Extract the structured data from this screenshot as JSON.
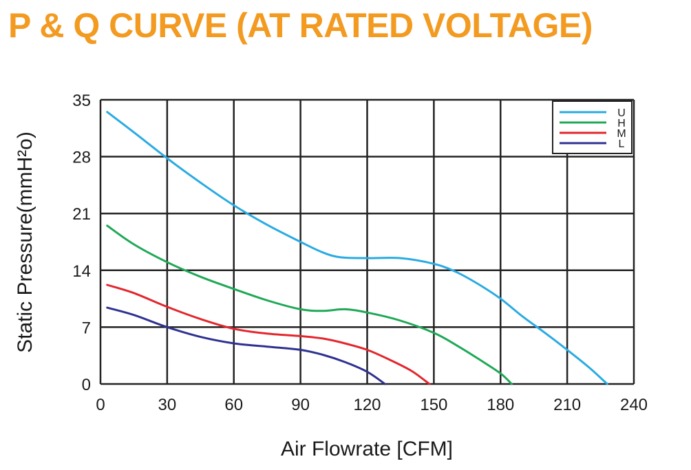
{
  "chart_data": {
    "type": "line",
    "title": "P & Q CURVE (AT RATED VOLTAGE)",
    "xlabel": "Air  Flowrate   [CFM]",
    "ylabel": "Static Pressure(mmH²o)",
    "xlim": [
      0,
      240
    ],
    "ylim": [
      0,
      35
    ],
    "x_ticks": [
      0,
      30,
      60,
      90,
      120,
      150,
      180,
      210,
      240
    ],
    "y_ticks": [
      0,
      7,
      14,
      21,
      28,
      35
    ],
    "grid": true,
    "legend_position": "top-right",
    "series": [
      {
        "name": "U",
        "color": "#29abe2",
        "points": [
          [
            3,
            33.5
          ],
          [
            15,
            31
          ],
          [
            30,
            27.8
          ],
          [
            45,
            24.8
          ],
          [
            60,
            22
          ],
          [
            75,
            19.6
          ],
          [
            90,
            17.5
          ],
          [
            100,
            16.2
          ],
          [
            108,
            15.6
          ],
          [
            120,
            15.5
          ],
          [
            135,
            15.5
          ],
          [
            150,
            14.8
          ],
          [
            160,
            13.8
          ],
          [
            170,
            12.3
          ],
          [
            180,
            10.5
          ],
          [
            190,
            8.3
          ],
          [
            200,
            6.3
          ],
          [
            210,
            4.2
          ],
          [
            220,
            2
          ],
          [
            228,
            0
          ]
        ]
      },
      {
        "name": "H",
        "color": "#1fa856",
        "points": [
          [
            3,
            19.5
          ],
          [
            15,
            17.2
          ],
          [
            30,
            15
          ],
          [
            45,
            13.2
          ],
          [
            60,
            11.7
          ],
          [
            75,
            10.3
          ],
          [
            90,
            9.2
          ],
          [
            100,
            9
          ],
          [
            110,
            9.2
          ],
          [
            120,
            8.8
          ],
          [
            135,
            7.8
          ],
          [
            150,
            6.3
          ],
          [
            160,
            4.8
          ],
          [
            170,
            3.1
          ],
          [
            180,
            1.3
          ],
          [
            185,
            0
          ]
        ]
      },
      {
        "name": "M",
        "color": "#e3262d",
        "points": [
          [
            3,
            12.2
          ],
          [
            15,
            11.2
          ],
          [
            30,
            9.5
          ],
          [
            45,
            8
          ],
          [
            60,
            6.8
          ],
          [
            75,
            6.2
          ],
          [
            90,
            5.9
          ],
          [
            100,
            5.6
          ],
          [
            110,
            5
          ],
          [
            120,
            4.2
          ],
          [
            130,
            3
          ],
          [
            140,
            1.6
          ],
          [
            148,
            0
          ]
        ]
      },
      {
        "name": "L",
        "color": "#2e3192",
        "points": [
          [
            3,
            9.4
          ],
          [
            15,
            8.5
          ],
          [
            30,
            7
          ],
          [
            45,
            5.8
          ],
          [
            60,
            5
          ],
          [
            75,
            4.6
          ],
          [
            90,
            4.2
          ],
          [
            100,
            3.6
          ],
          [
            110,
            2.7
          ],
          [
            120,
            1.5
          ],
          [
            128,
            0
          ]
        ]
      }
    ]
  }
}
